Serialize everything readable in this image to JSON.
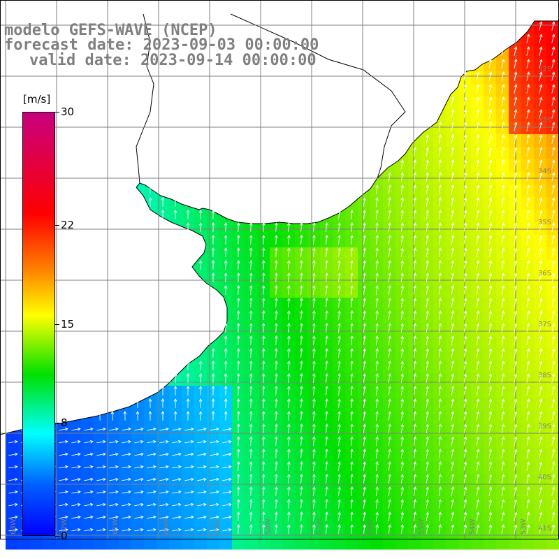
{
  "title": {
    "line1": "modelo GEFS-WAVE (NCEP)",
    "line2": "forecast date: 2023-09-03 00:00:00",
    "line3": "valid date: 2023-09-14 00:00:00"
  },
  "colorbar": {
    "unit": "[m/s]",
    "min": 0,
    "max": 30,
    "ticks": [
      {
        "value": 30,
        "label": "30"
      },
      {
        "value": 22,
        "label": "22"
      },
      {
        "value": 15,
        "label": "15"
      },
      {
        "value": 8,
        "label": "8"
      },
      {
        "value": 0,
        "label": "0"
      }
    ]
  },
  "map": {
    "variable": "wind speed",
    "lat_labels": [
      "32S",
      "33S",
      "34S",
      "35S",
      "36S",
      "37S",
      "38S",
      "39S",
      "40S",
      "41S"
    ],
    "lon_labels": [
      "63W",
      "62W",
      "61W",
      "60W",
      "59W",
      "58W",
      "57W",
      "56W",
      "55W",
      "54W",
      "53W"
    ],
    "colors": {
      "land": "#ffffff",
      "grid": "#808080",
      "coast": "#000000",
      "arrow": "#ffffff"
    }
  }
}
